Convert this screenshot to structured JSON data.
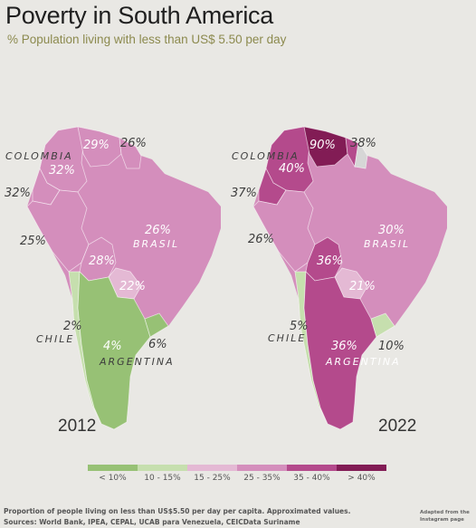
{
  "title": "Poverty in South America",
  "subtitle": "% Population living with less than US$ 5.50 per day",
  "colors": {
    "lt10": "#97c175",
    "c10_15": "#c6dfae",
    "c15_25": "#e4b9d4",
    "c25_35": "#d48ebc",
    "c35_40": "#b44a8c",
    "gt40": "#821c55",
    "nodata": "#d6d6d6"
  },
  "maps": [
    {
      "year": "2012",
      "labels": {
        "colombia": "COLOMBIA",
        "brasil": "BRASIL",
        "chile": "CHILE",
        "argentina": "ARGENTINA"
      },
      "values": {
        "venezuela": "29%",
        "guyana": "26%",
        "colombia": "32%",
        "ecuador": "32%",
        "peru": "25%",
        "brazil": "26%",
        "bolivia": "28%",
        "paraguay": "22%",
        "chile": "2%",
        "argentina": "4%",
        "uruguay": "6%"
      }
    },
    {
      "year": "2022",
      "labels": {
        "colombia": "COLOMBIA",
        "brasil": "BRASIL",
        "chile": "CHILE",
        "argentina": "ARGENTINA"
      },
      "values": {
        "venezuela": "90%",
        "guyana": "38%",
        "colombia": "40%",
        "ecuador": "37%",
        "peru": "26%",
        "brazil": "30%",
        "bolivia": "36%",
        "paraguay": "21%",
        "chile": "5%",
        "argentina": "36%",
        "uruguay": "10%"
      }
    }
  ],
  "legend": [
    "< 10%",
    "10 - 15%",
    "15 - 25%",
    "25 - 35%",
    "35 - 40%",
    "> 40%"
  ],
  "footnote": "Proportion of people living on less than US$5.50 per day per capita. Approximated values.",
  "sources": "Sources: World Bank, IPEA, CEPAL, UCAB para Venezuela, CEICData Suriname",
  "credit": "Adapted from the Instagram page"
}
